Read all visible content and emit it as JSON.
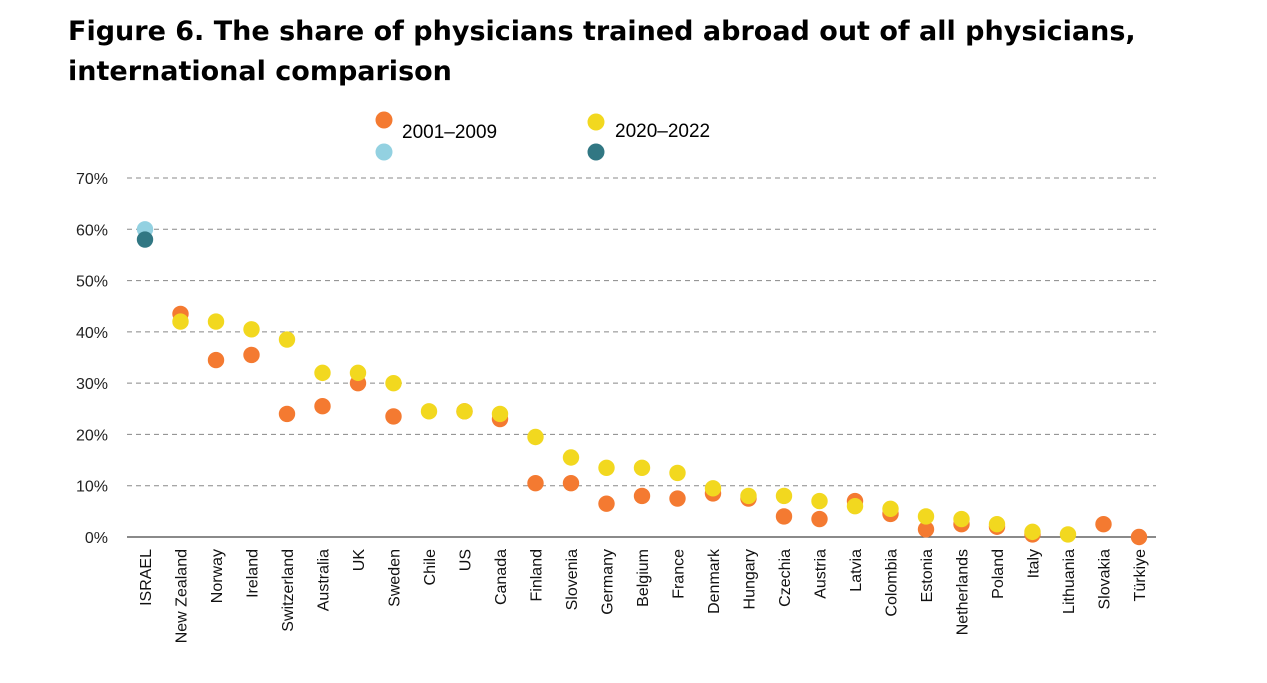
{
  "title": "Figure 6. The share of physicians trained abroad out of all physicians, international comparison",
  "legend": {
    "label_early": "2001–2009",
    "label_late": "2020–2022"
  },
  "colors": {
    "early": "#f47a31",
    "late": "#f2d81f",
    "early_highlight": "#93d1e1",
    "late_highlight": "#317783",
    "grid": "#888888",
    "axis": "#444444"
  },
  "chart_data": {
    "type": "scatter",
    "title": "Figure 6. The share of physicians trained abroad out of all physicians, international comparison",
    "xlabel": "",
    "ylabel": "",
    "ylim": [
      0,
      70
    ],
    "yticks": [
      "0%",
      "10%",
      "20%",
      "30%",
      "40%",
      "50%",
      "60%",
      "70%"
    ],
    "grid": true,
    "legend_position": "top",
    "categories": [
      "ISRAEL",
      "New Zealand",
      "Norway",
      "Ireland",
      "Switzerland",
      "Australia",
      "UK",
      "Sweden",
      "Chile",
      "US",
      "Canada",
      "Finland",
      "Slovenia",
      "Germany",
      "Belgium",
      "France",
      "Denmark",
      "Hungary",
      "Czechia",
      "Austria",
      "Latvia",
      "Colombia",
      "Estonia",
      "Netherlands",
      "Poland",
      "Italy",
      "Lithuania",
      "Slovakia",
      "Türkiye"
    ],
    "highlight_category": "ISRAEL",
    "series": [
      {
        "name": "2001–2009",
        "values": [
          60.0,
          43.5,
          34.5,
          35.5,
          24.0,
          25.5,
          30.0,
          23.5,
          null,
          24.5,
          23.0,
          10.5,
          10.5,
          6.5,
          8.0,
          7.5,
          8.5,
          7.5,
          4.0,
          3.5,
          7.0,
          4.5,
          1.5,
          2.5,
          2.0,
          0.5,
          null,
          2.5,
          0.0
        ]
      },
      {
        "name": "2020–2022",
        "values": [
          58.0,
          42.0,
          42.0,
          40.5,
          38.5,
          32.0,
          32.0,
          30.0,
          24.5,
          24.5,
          24.0,
          19.5,
          15.5,
          13.5,
          13.5,
          12.5,
          9.5,
          8.0,
          8.0,
          7.0,
          6.0,
          5.5,
          4.0,
          3.5,
          2.5,
          1.0,
          0.5,
          null,
          null
        ]
      }
    ]
  }
}
